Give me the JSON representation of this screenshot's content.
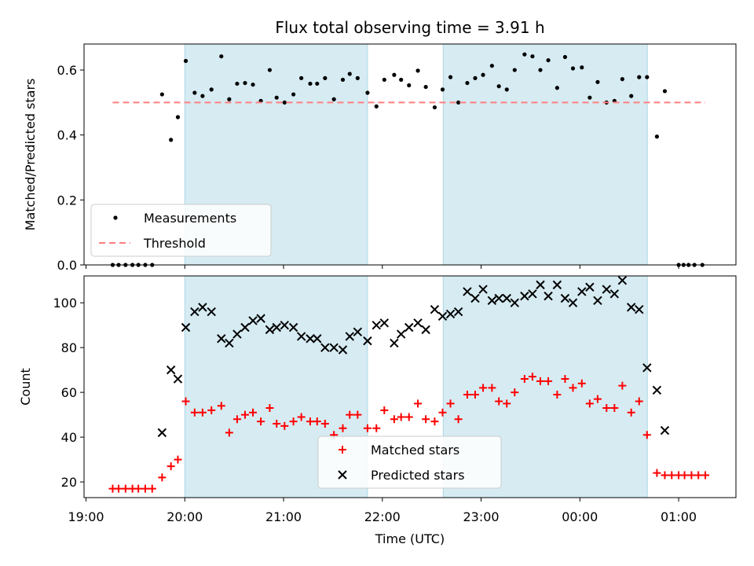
{
  "chart_data": {
    "type": "scatter",
    "title": "Flux total observing time = 3.91 h",
    "x_axis": {
      "label": "Time (UTC)",
      "ticks": [
        "19:00",
        "20:00",
        "21:00",
        "22:00",
        "23:00",
        "00:00",
        "01:00"
      ],
      "range_hours_from_19": [
        -0.02,
        6.58
      ]
    },
    "shaded_intervals": [
      {
        "start": "20:00",
        "end": "21:51"
      },
      {
        "start": "22:37",
        "end": "00:41"
      }
    ],
    "shade_color": "#add8e6",
    "panels": [
      {
        "ylabel": "Matched/Predicted stars",
        "ylim": [
          0,
          0.68
        ],
        "yticks": [
          "0.0",
          "0.2",
          "0.4",
          "0.6"
        ],
        "legend": {
          "location": "lower left",
          "entries": [
            "Measurements",
            "Threshold"
          ]
        },
        "series": [
          {
            "name": "Measurements",
            "marker": "dot",
            "color": "#000000",
            "x": [
              19.27,
              19.33,
              19.4,
              19.47,
              19.53,
              19.6,
              19.67,
              19.77,
              19.86,
              19.93,
              20.01,
              20.1,
              20.18,
              20.27,
              20.37,
              20.45,
              20.53,
              20.61,
              20.69,
              20.77,
              20.86,
              20.93,
              21.01,
              21.1,
              21.18,
              21.27,
              21.34,
              21.42,
              21.51,
              21.6,
              21.67,
              21.75,
              21.85,
              21.94,
              22.02,
              22.12,
              22.19,
              22.27,
              22.36,
              22.44,
              22.53,
              22.61,
              22.69,
              22.77,
              22.86,
              22.94,
              23.02,
              23.11,
              23.18,
              23.26,
              23.34,
              23.44,
              23.52,
              23.6,
              23.68,
              23.77,
              23.85,
              23.93,
              24.02,
              24.1,
              24.18,
              24.27,
              24.35,
              24.43,
              24.52,
              24.6,
              24.68,
              24.78,
              24.86,
              25.0,
              25.05,
              25.1,
              25.16,
              25.24
            ],
            "y": [
              0.0,
              0.0,
              0.0,
              0.0,
              0.0,
              0.0,
              0.0,
              0.525,
              0.385,
              0.455,
              0.628,
              0.53,
              0.52,
              0.54,
              0.642,
              0.51,
              0.558,
              0.56,
              0.555,
              0.505,
              0.6,
              0.515,
              0.5,
              0.525,
              0.575,
              0.558,
              0.558,
              0.575,
              0.51,
              0.57,
              0.588,
              0.575,
              0.53,
              0.488,
              0.57,
              0.585,
              0.57,
              0.553,
              0.598,
              0.548,
              0.485,
              0.54,
              0.578,
              0.5,
              0.56,
              0.575,
              0.585,
              0.613,
              0.55,
              0.54,
              0.6,
              0.648,
              0.642,
              0.6,
              0.63,
              0.545,
              0.64,
              0.605,
              0.608,
              0.515,
              0.563,
              0.5,
              0.505,
              0.572,
              0.52,
              0.578,
              0.578,
              0.395,
              0.535,
              0.0,
              0.0,
              0.0,
              0.0,
              0.0
            ]
          },
          {
            "name": "Threshold",
            "style": "dashed",
            "color": "#ff7f7f",
            "x": [
              19.27,
              25.27
            ],
            "y": [
              0.5,
              0.5
            ]
          }
        ]
      },
      {
        "ylabel": "Count",
        "ylim": [
          13,
          112
        ],
        "yticks": [
          "20",
          "40",
          "60",
          "80",
          "100"
        ],
        "legend": {
          "location": "lower center",
          "entries": [
            "Matched stars",
            "Predicted stars"
          ]
        },
        "series": [
          {
            "name": "Matched stars",
            "marker": "plus",
            "color": "#ff0000",
            "x": [
              19.27,
              19.33,
              19.4,
              19.47,
              19.53,
              19.6,
              19.67,
              19.77,
              19.86,
              19.93,
              20.01,
              20.1,
              20.18,
              20.27,
              20.37,
              20.45,
              20.53,
              20.61,
              20.69,
              20.77,
              20.86,
              20.93,
              21.01,
              21.1,
              21.18,
              21.27,
              21.34,
              21.42,
              21.51,
              21.6,
              21.67,
              21.75,
              21.85,
              21.94,
              22.02,
              22.12,
              22.19,
              22.27,
              22.36,
              22.44,
              22.53,
              22.61,
              22.69,
              22.77,
              22.86,
              22.94,
              23.02,
              23.11,
              23.18,
              23.26,
              23.34,
              23.44,
              23.52,
              23.6,
              23.68,
              23.77,
              23.85,
              23.93,
              24.02,
              24.1,
              24.18,
              24.27,
              24.35,
              24.43,
              24.52,
              24.6,
              24.68,
              24.78,
              24.86,
              24.93,
              25.0,
              25.06,
              25.13,
              25.2,
              25.27
            ],
            "y": [
              17,
              17,
              17,
              17,
              17,
              17,
              17,
              22,
              27,
              30,
              56,
              51,
              51,
              52,
              54,
              42,
              48,
              50,
              51,
              47,
              53,
              46,
              45,
              47,
              49,
              47,
              47,
              46,
              41,
              44,
              50,
              50,
              44,
              44,
              52,
              48,
              49,
              49,
              55,
              48,
              47,
              51,
              55,
              48,
              59,
              59,
              62,
              62,
              56,
              55,
              60,
              66,
              67,
              65,
              65,
              59,
              66,
              62,
              64,
              55,
              57,
              53,
              53,
              63,
              51,
              56,
              41,
              24,
              23,
              23,
              23,
              23,
              23,
              23,
              23
            ]
          },
          {
            "name": "Predicted stars",
            "marker": "x",
            "color": "#000000",
            "x": [
              19.77,
              19.86,
              19.93,
              20.01,
              20.1,
              20.18,
              20.27,
              20.37,
              20.45,
              20.53,
              20.61,
              20.69,
              20.77,
              20.86,
              20.93,
              21.01,
              21.1,
              21.18,
              21.27,
              21.34,
              21.42,
              21.51,
              21.6,
              21.67,
              21.75,
              21.85,
              21.94,
              22.02,
              22.12,
              22.19,
              22.27,
              22.36,
              22.44,
              22.53,
              22.61,
              22.69,
              22.77,
              22.86,
              22.94,
              23.02,
              23.11,
              23.18,
              23.26,
              23.34,
              23.44,
              23.52,
              23.6,
              23.68,
              23.77,
              23.85,
              23.93,
              24.02,
              24.1,
              24.18,
              24.27,
              24.35,
              24.43,
              24.52,
              24.6,
              24.68,
              24.78,
              24.86
            ],
            "y": [
              42,
              70,
              66,
              89,
              96,
              98,
              96,
              84,
              82,
              86,
              89,
              92,
              93,
              88,
              89,
              90,
              89,
              85,
              84,
              84,
              80,
              80,
              79,
              85,
              87,
              83,
              90,
              91,
              82,
              86,
              89,
              91,
              88,
              97,
              94,
              95,
              96,
              105,
              102,
              106,
              101,
              102,
              102,
              100,
              103,
              104,
              108,
              103,
              108,
              102,
              100,
              105,
              107,
              101,
              106,
              104,
              110,
              98,
              97,
              71,
              61,
              43
            ]
          }
        ]
      }
    ]
  }
}
